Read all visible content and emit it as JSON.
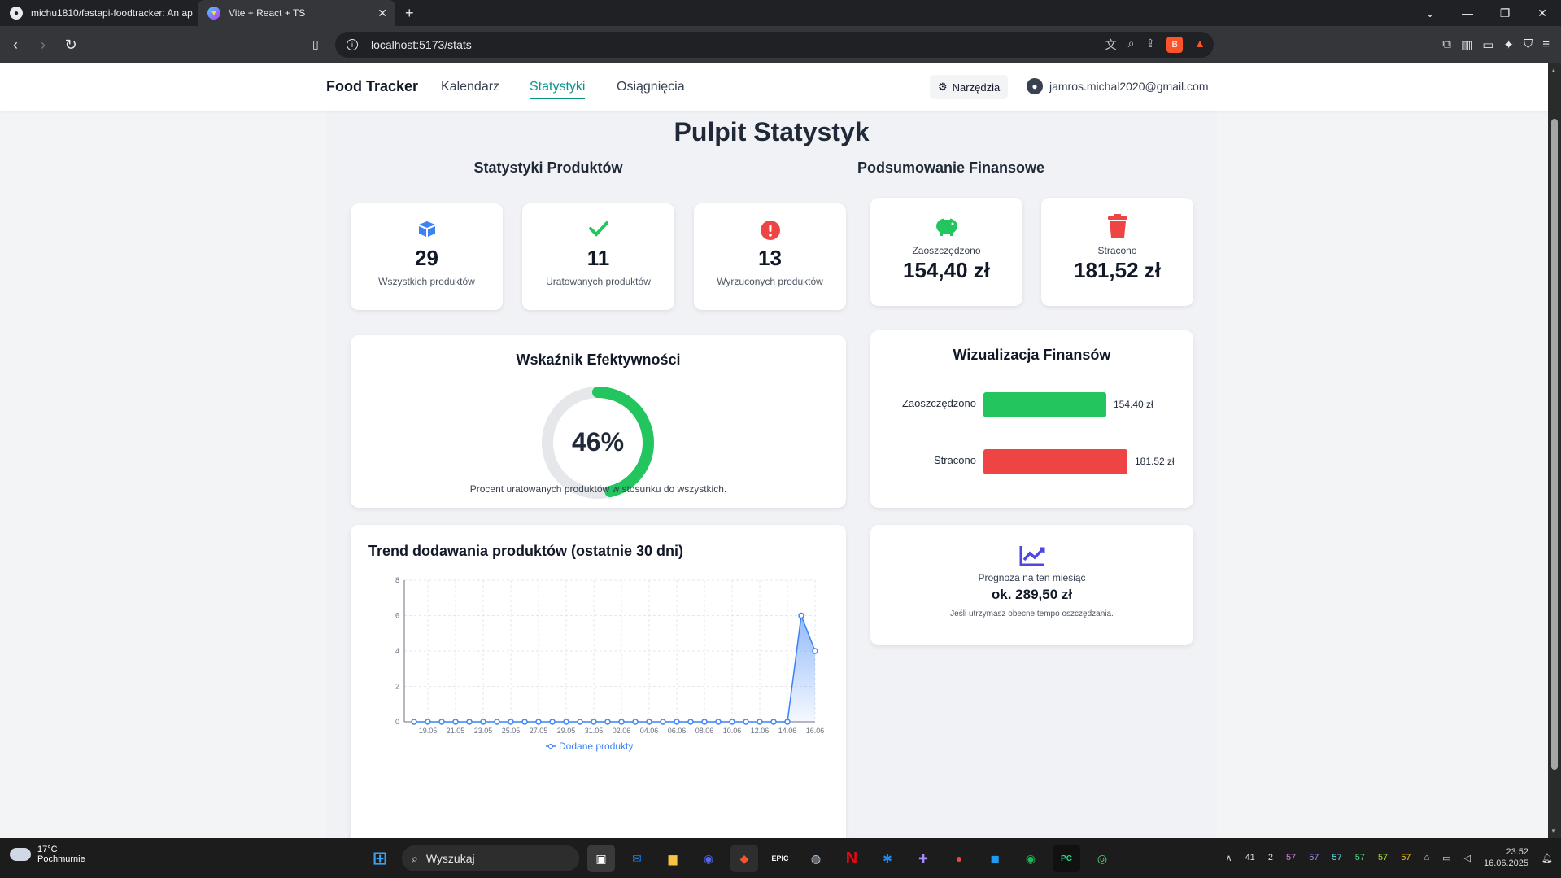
{
  "browser": {
    "tabs": [
      {
        "title": "michu1810/fastapi-foodtracker: An ap",
        "favicon": "github-icon"
      },
      {
        "title": "Vite + React + TS",
        "favicon": "vite-icon"
      }
    ],
    "url": "localhost:5173/stats"
  },
  "nav": {
    "brand": "Food Tracker",
    "links": [
      "Kalendarz",
      "Statystyki",
      "Osiągnięcia"
    ],
    "active": "Statystyki",
    "tools_label": "Narzędzia",
    "user_email": "jamros.michal2020@gmail.com"
  },
  "page": {
    "title": "Pulpit Statystyk",
    "products_section": "Statystyki Produktów",
    "finance_section": "Podsumowanie Finansowe"
  },
  "stats": [
    {
      "value": "29",
      "label": "Wszystkich produktów",
      "icon": "box-icon",
      "color": "#3b82f6"
    },
    {
      "value": "11",
      "label": "Uratowanych produktów",
      "icon": "check-icon",
      "color": "#22c55e"
    },
    {
      "value": "13",
      "label": "Wyrzuconych produktów",
      "icon": "alert-icon",
      "color": "#ef4444"
    }
  ],
  "finance": [
    {
      "label": "Zaoszczędzono",
      "value": "154,40 zł",
      "icon": "piggy-bank-icon",
      "color": "#22c55e"
    },
    {
      "label": "Stracono",
      "value": "181,52 zł",
      "icon": "trash-icon",
      "color": "#ef4444"
    }
  ],
  "efficiency": {
    "title": "Wskaźnik Efektywności",
    "value_label": "46%",
    "percent": 46,
    "caption": "Procent uratowanych produktów w stosunku do wszystkich.",
    "color": "#22c55e"
  },
  "finance_viz": {
    "title": "Wizualizacja Finansów",
    "bars": [
      {
        "label": "Zaoszczędzono",
        "value": 154.4,
        "value_label": "154.40 zł",
        "color": "#22c55e"
      },
      {
        "label": "Stracono",
        "value": 181.52,
        "value_label": "181.52 zł",
        "color": "#ef4444"
      }
    ]
  },
  "forecast": {
    "icon": "trend-chart-icon",
    "label": "Prognoza na ten miesiąc",
    "value": "ok. 289,50 zł",
    "note": "Jeśli utrzymasz obecne tempo oszczędzania."
  },
  "trend": {
    "title": "Trend dodawania produktów (ostatnie 30 dni)"
  },
  "chart_data": {
    "type": "area",
    "title": "Trend dodawania produktów (ostatnie 30 dni)",
    "ylim": [
      0,
      8
    ],
    "yticks": [
      "0",
      "2",
      "4",
      "6",
      "8"
    ],
    "xticks": [
      "19.05",
      "21.05",
      "23.05",
      "25.05",
      "27.05",
      "29.05",
      "31.05",
      "02.06",
      "04.06",
      "06.06",
      "08.06",
      "10.06",
      "12.06",
      "14.06",
      "16.06"
    ],
    "series": [
      {
        "name": "Dodane produkty",
        "color": "#3b82f6",
        "values": [
          0,
          0,
          0,
          0,
          0,
          0,
          0,
          0,
          0,
          0,
          0,
          0,
          0,
          0,
          0,
          0,
          0,
          0,
          0,
          0,
          0,
          0,
          0,
          0,
          0,
          0,
          0,
          0,
          6,
          4
        ]
      }
    ],
    "grid": true,
    "legend": "bottom"
  },
  "taskbar": {
    "temperature": "17°C",
    "weather": "Pochmurnie",
    "search_placeholder": "Wyszukaj",
    "tray_numbers": [
      "41",
      "2",
      "57",
      "57",
      "57",
      "57",
      "57",
      "57"
    ],
    "time": "23:52",
    "date": "16.06.2025"
  }
}
